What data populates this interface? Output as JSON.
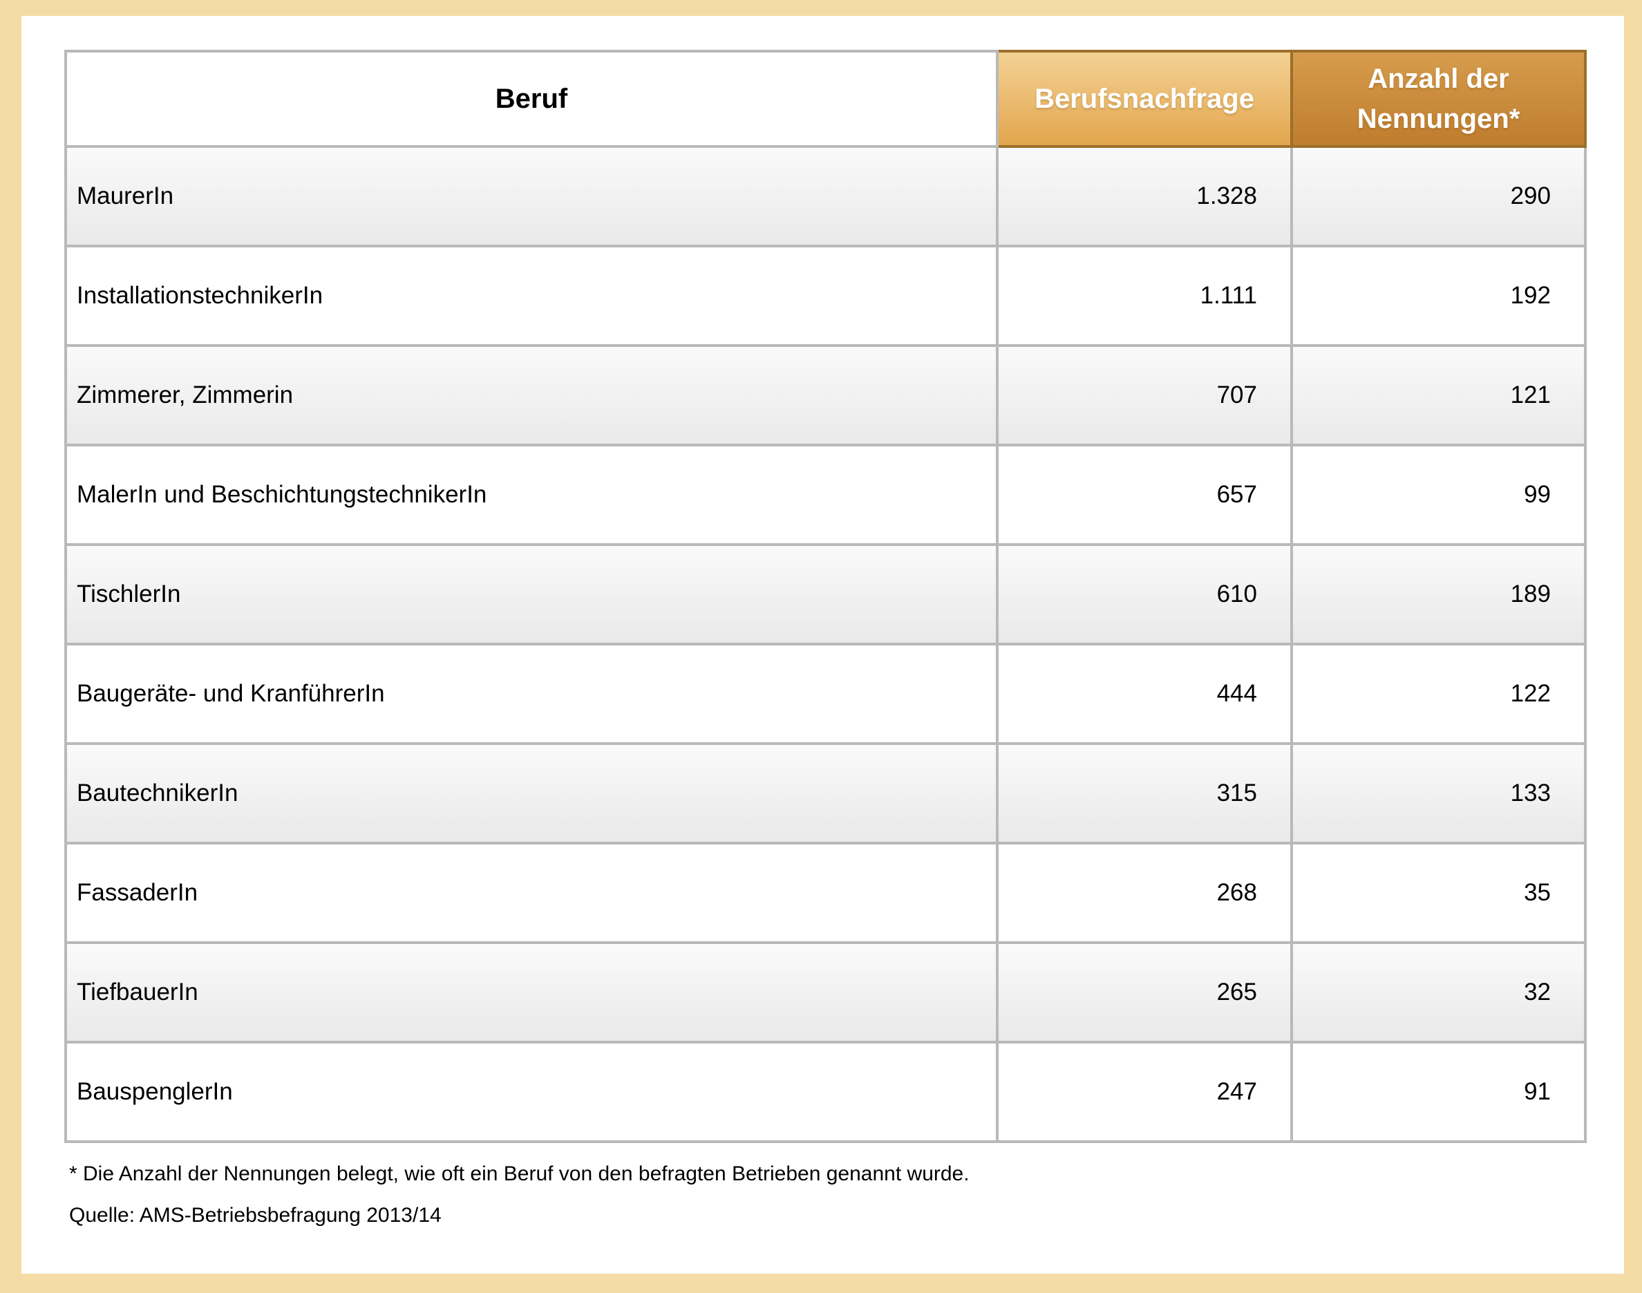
{
  "table": {
    "columns": [
      {
        "label": "Beruf"
      },
      {
        "label": "Berufsnachfrage"
      },
      {
        "label": "Anzahl der Nennungen*"
      }
    ],
    "rows": [
      {
        "beruf": "MaurerIn",
        "nachfrage": "1.328",
        "nennungen": "290"
      },
      {
        "beruf": "InstallationstechnikerIn",
        "nachfrage": "1.111",
        "nennungen": "192"
      },
      {
        "beruf": "Zimmerer, Zimmerin",
        "nachfrage": "707",
        "nennungen": "121"
      },
      {
        "beruf": "MalerIn und BeschichtungstechnikerIn",
        "nachfrage": "657",
        "nennungen": "99"
      },
      {
        "beruf": "TischlerIn",
        "nachfrage": "610",
        "nennungen": "189"
      },
      {
        "beruf": "Baugeräte- und KranführerIn",
        "nachfrage": "444",
        "nennungen": "122"
      },
      {
        "beruf": "BautechnikerIn",
        "nachfrage": "315",
        "nennungen": "133"
      },
      {
        "beruf": "FassaderIn",
        "nachfrage": "268",
        "nennungen": "35"
      },
      {
        "beruf": "TiefbauerIn",
        "nachfrage": "265",
        "nennungen": "32"
      },
      {
        "beruf": "BauspenglerIn",
        "nachfrage": "247",
        "nennungen": "91"
      }
    ]
  },
  "footnote": "* Die Anzahl der Nennungen belegt, wie oft ein Beruf von den befragten Betrieben genannt wurde.",
  "source": "Quelle: AMS-Betriebsbefragung 2013/14",
  "colors": {
    "page_border": "#f5dca6",
    "panel": "#ffffff",
    "grid_border": "#b9b9b9",
    "header_light_orange_top": "#f3d193",
    "header_light_orange_bottom": "#e3a64f",
    "header_dark_orange_top": "#d69c4c",
    "header_dark_orange_bottom": "#bf7d2e",
    "header_border_brown": "#9c6f2a",
    "row_stripe_top": "#fafafa",
    "row_stripe_bottom": "#e9e9e9",
    "header_text": "#ffffff",
    "body_text": "#000000"
  }
}
